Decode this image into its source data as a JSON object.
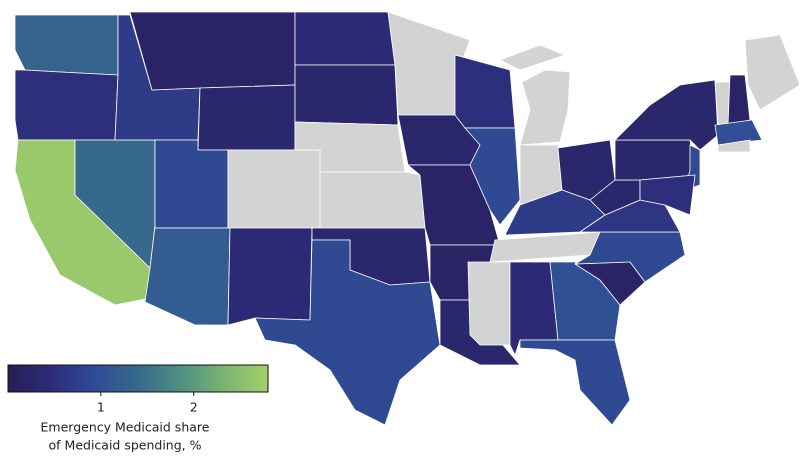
{
  "chart_data": {
    "type": "choropleth",
    "legend_title": [
      "Emergency Medicaid share",
      "of Medicaid spending, %"
    ],
    "colorbar": {
      "lim": [
        0,
        2.8
      ],
      "ticks": [
        1,
        2
      ],
      "colors": [
        "#271d55",
        "#2d2c7a",
        "#2f4b95",
        "#36698c",
        "#4f9080",
        "#7cb472",
        "#a2cf6a"
      ]
    },
    "missing_color": "#d3d3d3",
    "values": [
      1.3,
      0.5,
      2.7,
      1.4,
      0.7,
      0.2,
      0.3,
      0.9,
      null,
      1.2,
      0.4,
      0.4,
      0.3,
      null,
      null,
      0.3,
      0.9,
      null,
      0.3,
      0.2,
      0.2,
      0.3,
      0.5,
      0.9,
      null,
      null,
      0.3,
      0.7,
      null,
      null,
      0.4,
      1.0,
      0.9,
      0.2,
      0.9,
      0.6,
      0.3,
      0.3,
      0.3,
      0.9,
      0.5,
      null,
      0.2,
      null,
      1.0,
      null
    ]
  }
}
